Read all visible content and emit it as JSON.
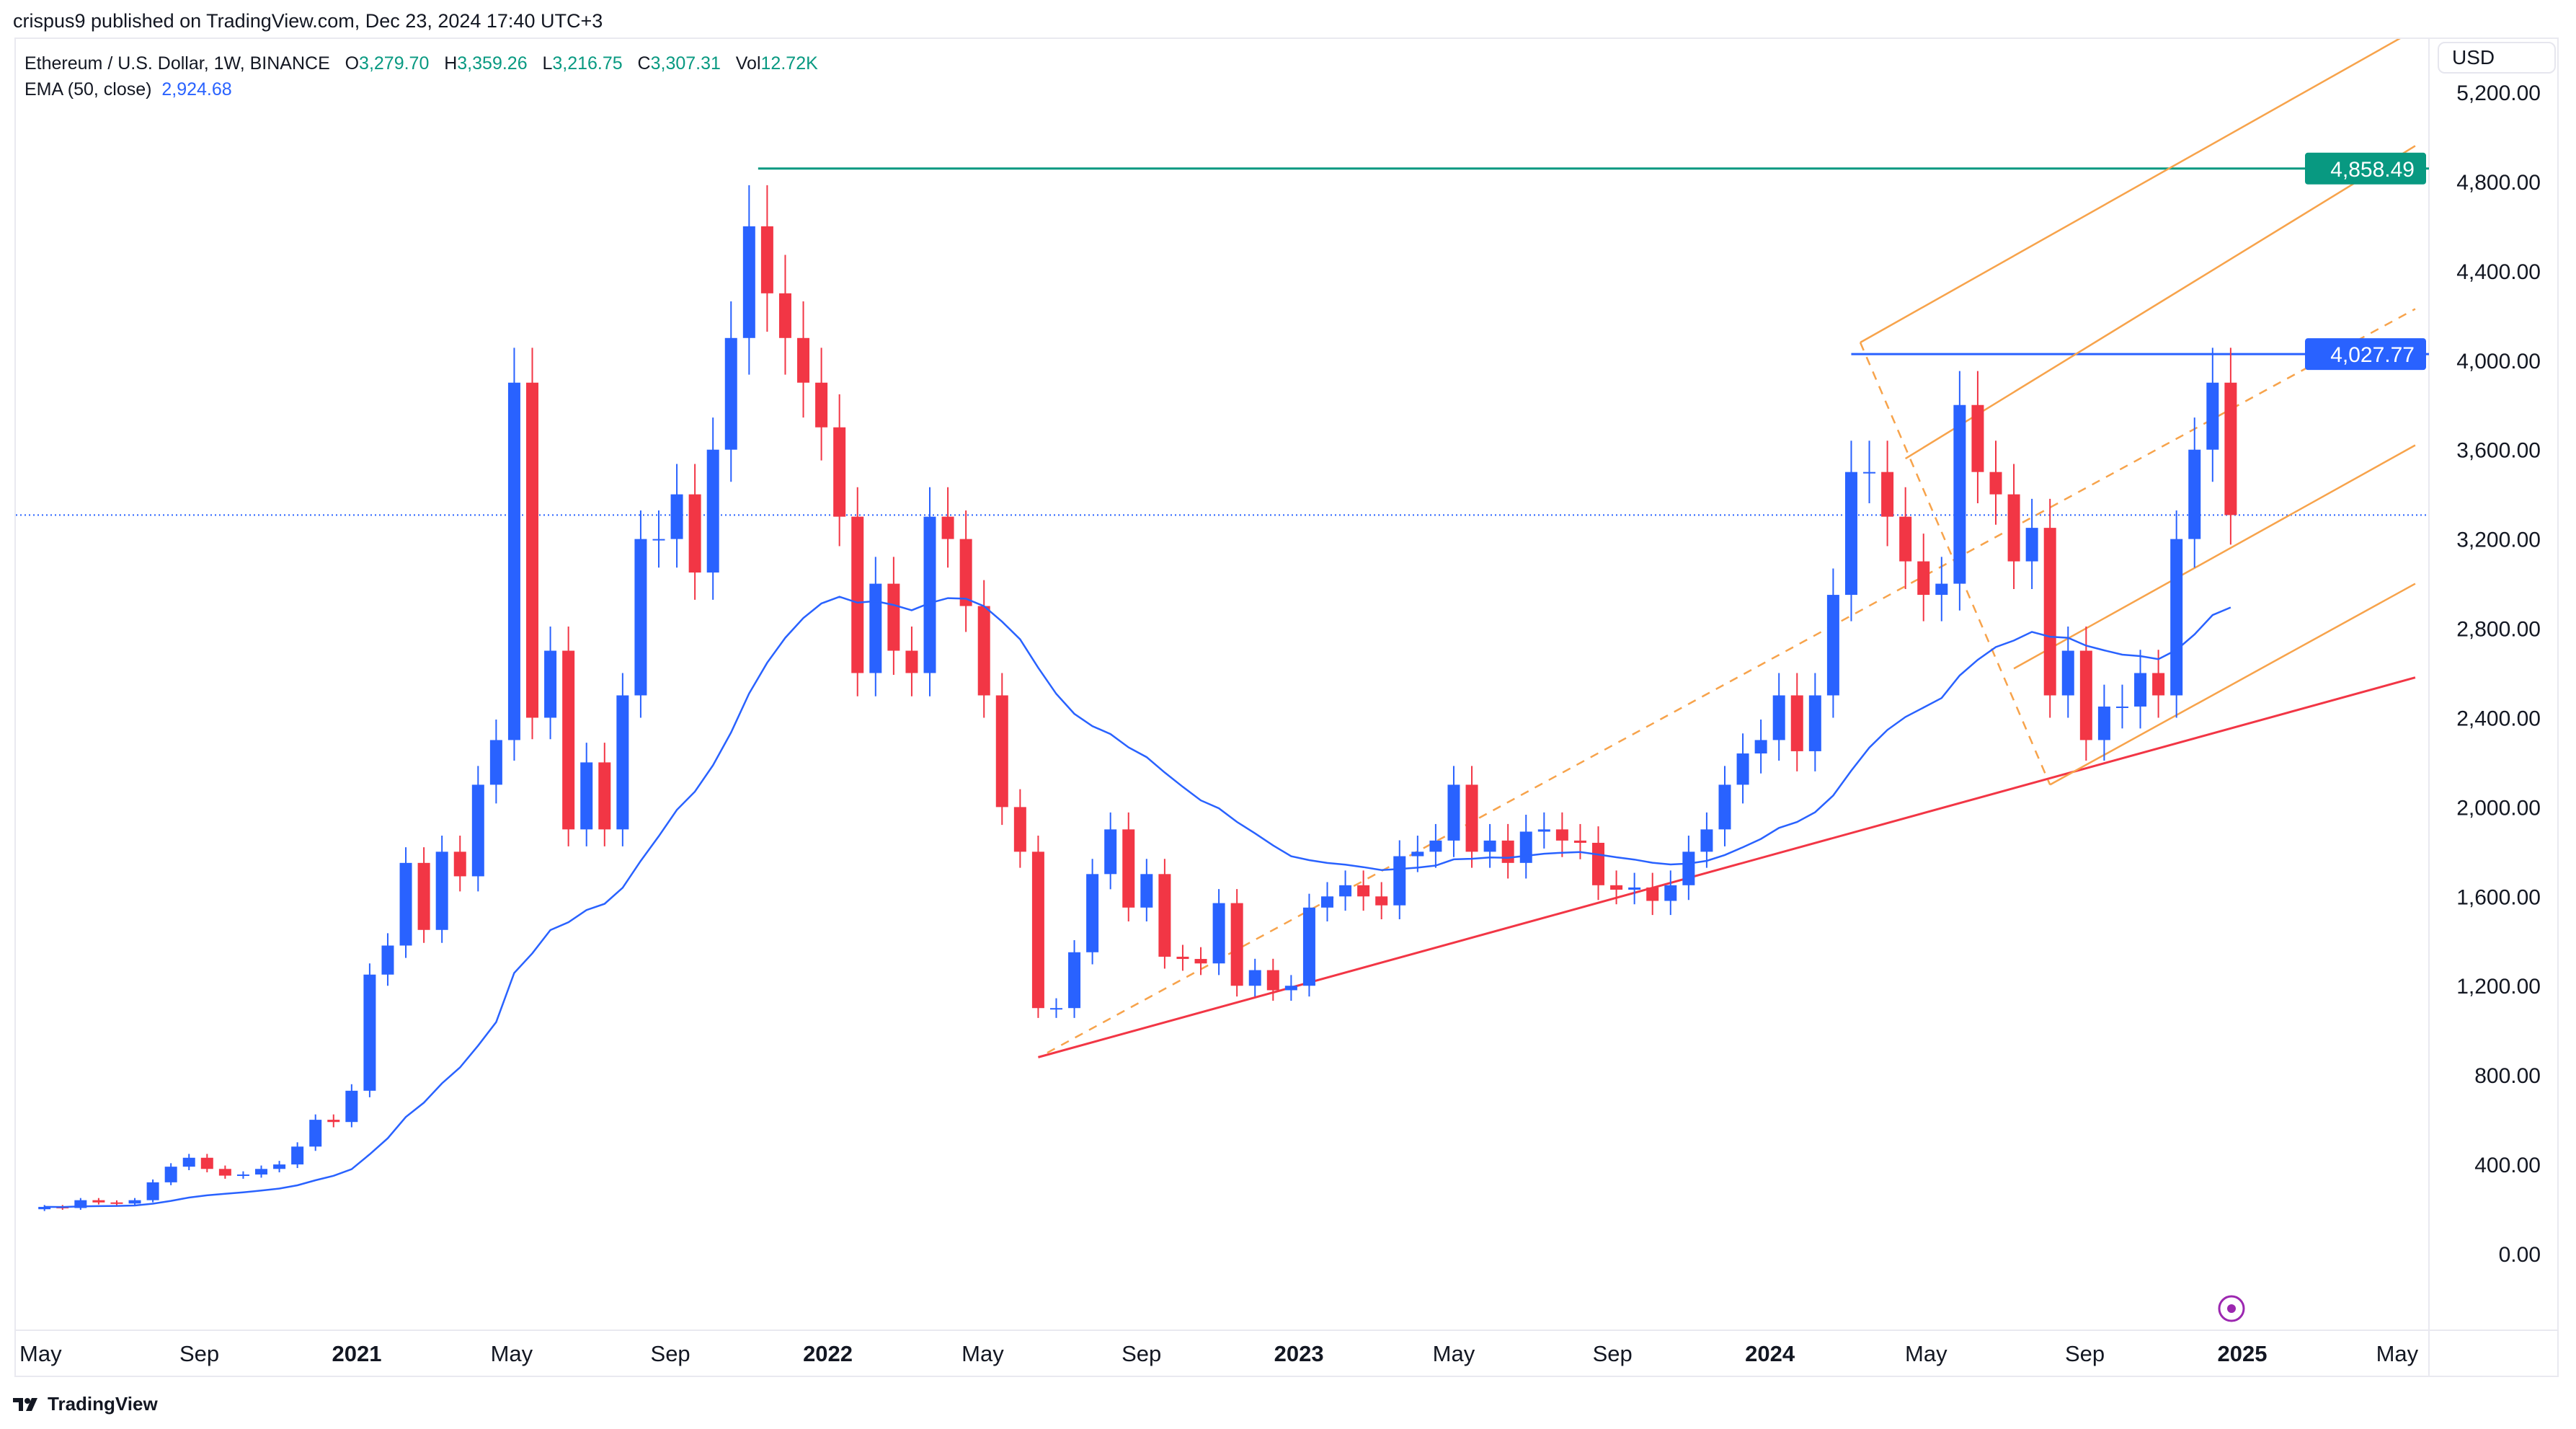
{
  "publisher": "crispus9 published on TradingView.com, Dec 23, 2024 17:40 UTC+3",
  "legend": {
    "symbol": "Ethereum / U.S. Dollar, 1W, BINANCE",
    "o_label": "O",
    "open": "3,279.70",
    "h_label": "H",
    "high": "3,359.26",
    "l_label": "L",
    "low": "3,216.75",
    "c_label": "C",
    "close": "3,307.31",
    "vol_label": "Vol",
    "volume": "12.72K",
    "ema_label": "EMA (50, close)",
    "ema_value": "2,924.68"
  },
  "currency_button": "USD",
  "brand": "TradingView",
  "colors": {
    "up": "#2962ff",
    "down": "#f23645",
    "ema": "#2962ff",
    "channel": "#f7a34b",
    "support": "#f23645",
    "ath_line": "#089981",
    "resistance": "#2962ff"
  },
  "chart_data": {
    "type": "candlestick",
    "title": "",
    "start_date": "2020-05-04",
    "interval_days": 14,
    "closes": [
      210,
      205,
      240,
      230,
      225,
      240,
      320,
      390,
      430,
      380,
      350,
      355,
      380,
      400,
      480,
      600,
      590,
      730,
      1250,
      1380,
      1750,
      1450,
      1800,
      1690,
      2100,
      2300,
      3900,
      2400,
      2700,
      1900,
      2200,
      1900,
      2500,
      3200,
      3200,
      3400,
      3050,
      3600,
      4100,
      4600,
      4300,
      4100,
      3900,
      3700,
      3300,
      2600,
      3000,
      2700,
      2600,
      3300,
      3200,
      2900,
      2500,
      2000,
      1800,
      1100,
      1100,
      1350,
      1700,
      1900,
      1550,
      1700,
      1330,
      1320,
      1300,
      1570,
      1200,
      1270,
      1180,
      1200,
      1550,
      1600,
      1650,
      1600,
      1560,
      1780,
      1800,
      1850,
      2100,
      1800,
      1850,
      1750,
      1890,
      1900,
      1850,
      1840,
      1650,
      1630,
      1640,
      1580,
      1650,
      1800,
      1900,
      2100,
      2240,
      2300,
      2500,
      2250,
      2500,
      2950,
      3500,
      3500,
      3300,
      3100,
      2950,
      3000,
      3800,
      3500,
      3400,
      3100,
      3250,
      2500,
      2700,
      2300,
      2450,
      2450,
      2600,
      2500,
      3200,
      3600,
      3900,
      3307.31
    ],
    "indicator": {
      "name": "EMA (50, close)",
      "last": 2924.68
    },
    "y_axis": {
      "range": [
        -200,
        5800
      ],
      "ticks": [
        "0.00",
        "400.00",
        "800.00",
        "1,200.00",
        "1,600.00",
        "2,000.00",
        "2,400.00",
        "2,800.00",
        "3,200.00",
        "3,600.00",
        "4,000.00",
        "4,400.00",
        "4,800.00",
        "5,200.00"
      ],
      "tick_values": [
        0,
        400,
        800,
        1200,
        1600,
        2000,
        2400,
        2800,
        3200,
        3600,
        4000,
        4400,
        4800,
        5200
      ]
    },
    "x_axis": {
      "ticks": [
        {
          "label": "May",
          "date": "2020-05-01",
          "year": false
        },
        {
          "label": "Sep",
          "date": "2020-09-01",
          "year": false
        },
        {
          "label": "2021",
          "date": "2021-01-01",
          "year": true
        },
        {
          "label": "May",
          "date": "2021-05-01",
          "year": false
        },
        {
          "label": "Sep",
          "date": "2021-09-01",
          "year": false
        },
        {
          "label": "2022",
          "date": "2022-01-01",
          "year": true
        },
        {
          "label": "May",
          "date": "2022-05-01",
          "year": false
        },
        {
          "label": "Sep",
          "date": "2022-09-01",
          "year": false
        },
        {
          "label": "2023",
          "date": "2023-01-01",
          "year": true
        },
        {
          "label": "May",
          "date": "2023-05-01",
          "year": false
        },
        {
          "label": "Sep",
          "date": "2023-09-01",
          "year": false
        },
        {
          "label": "2024",
          "date": "2024-01-01",
          "year": true
        },
        {
          "label": "May",
          "date": "2024-05-01",
          "year": false
        },
        {
          "label": "Sep",
          "date": "2024-09-01",
          "year": false
        },
        {
          "label": "2025",
          "date": "2025-01-01",
          "year": true
        },
        {
          "label": "May",
          "date": "2025-05-01",
          "year": false
        }
      ]
    },
    "price_labels": [
      {
        "value": 4858.49,
        "text": "4,858.49",
        "color": "#089981"
      },
      {
        "value": 4027.77,
        "text": "4,027.77",
        "color": "#2962ff"
      }
    ],
    "last_price": 3307.31,
    "drawings": [
      {
        "kind": "ath-line",
        "from": [
          "2021-11-08",
          4858.49
        ],
        "to": [
          "2025-06-30",
          4858.49
        ],
        "color": "#089981",
        "dash": false
      },
      {
        "kind": "resistance-line",
        "from": [
          "2024-03-04",
          4027.77
        ],
        "to": [
          "2025-06-30",
          4027.77
        ],
        "color": "#2962ff",
        "dash": false
      },
      {
        "kind": "support-trendline",
        "from": [
          "2022-06-13",
          880
        ],
        "to": [
          "2025-05-15",
          2580
        ],
        "color": "#f23645",
        "dash": false
      },
      {
        "kind": "channel-median",
        "from": [
          "2022-06-20",
          900
        ],
        "to": [
          "2025-05-15",
          4230
        ],
        "color": "#f7a34b",
        "dash": true
      },
      {
        "kind": "channel-upper",
        "from": [
          "2024-03-11",
          4080
        ],
        "to": [
          "2025-05-15",
          5480
        ],
        "color": "#f7a34b",
        "dash": false
      },
      {
        "kind": "channel-line-2",
        "from": [
          "2024-04-15",
          3560
        ],
        "to": [
          "2025-05-15",
          4960
        ],
        "color": "#f7a34b",
        "dash": false
      },
      {
        "kind": "channel-line-4",
        "from": [
          "2024-07-08",
          2620
        ],
        "to": [
          "2025-05-15",
          3620
        ],
        "color": "#f7a34b",
        "dash": false
      },
      {
        "kind": "channel-lower",
        "from": [
          "2024-08-05",
          2100
        ],
        "to": [
          "2025-05-15",
          3000
        ],
        "color": "#f7a34b",
        "dash": false
      },
      {
        "kind": "pitchfork-handle",
        "from": [
          "2024-03-11",
          4080
        ],
        "to": [
          "2024-08-05",
          2100
        ],
        "color": "#f7a34b",
        "dash": true
      }
    ]
  }
}
